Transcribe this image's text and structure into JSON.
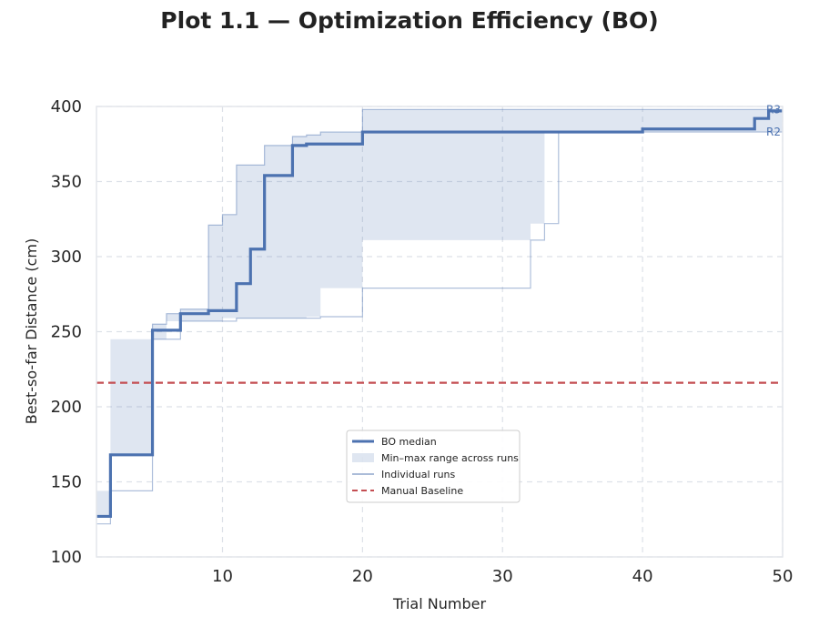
{
  "chart_data": {
    "type": "line",
    "title": "Plot 1.1 — Optimization Efficiency (BO)",
    "xlabel": "Trial Number",
    "ylabel": "Best-so-far Distance (cm)",
    "xlim": [
      1,
      50
    ],
    "ylim": [
      100,
      400
    ],
    "xticks": [
      10,
      20,
      30,
      40,
      50
    ],
    "yticks": [
      100,
      150,
      200,
      250,
      300,
      350,
      400
    ],
    "grid": true,
    "legend_position": "lower-center",
    "legend": [
      "BO median",
      "Min–max range across runs",
      "Individual runs",
      "Manual Baseline"
    ],
    "series": [
      {
        "name": "BO median",
        "color": "#4C72B0",
        "step": "post",
        "x": [
          1,
          2,
          5,
          7,
          9,
          11,
          12,
          13,
          15,
          16,
          20,
          40,
          48,
          49,
          50
        ],
        "y": [
          127,
          168,
          251,
          262,
          264,
          282,
          305,
          354,
          374,
          375,
          383,
          385,
          392,
          397,
          397
        ]
      },
      {
        "name": "Min–max range across runs",
        "color": "#4C72B0",
        "step": "post",
        "x": [
          1,
          2,
          5,
          6,
          7,
          9,
          10,
          11,
          13,
          15,
          16,
          17,
          20,
          32,
          33,
          34,
          48,
          50
        ],
        "upper": [
          127,
          168,
          255,
          262,
          265,
          321,
          328,
          361,
          374,
          380,
          381,
          383,
          398,
          398,
          398,
          398,
          398,
          398
        ],
        "lower": [
          122,
          144,
          245,
          245,
          257,
          257,
          257,
          259,
          259,
          259,
          259,
          260,
          279,
          311,
          322,
          383,
          383,
          383
        ]
      },
      {
        "name": "Manual Baseline",
        "color": "#C44E52",
        "dashed": true,
        "y": 216
      }
    ],
    "annotations": [
      {
        "text": "R3",
        "x": 50,
        "y": 398
      },
      {
        "text": "R2",
        "x": 50,
        "y": 383
      }
    ]
  }
}
